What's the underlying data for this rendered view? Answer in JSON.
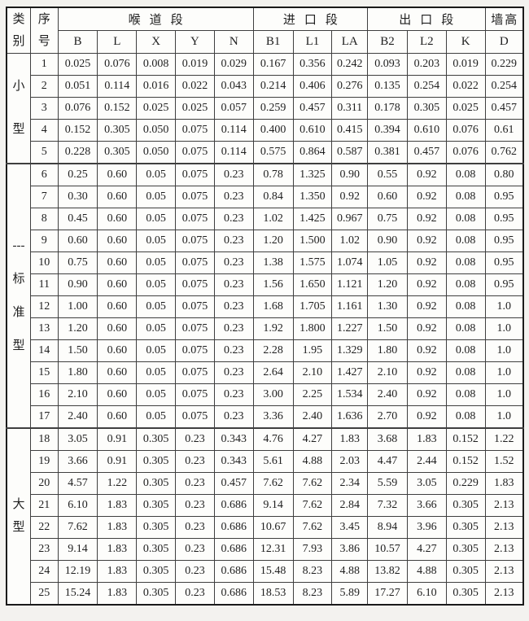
{
  "colors": {
    "page_background": "#f3f2ef",
    "cell_background": "#fdfdfb",
    "border_inner": "#3f3f3f",
    "border_outer": "#1a1a1a",
    "text": "#1f1f1f"
  },
  "table": {
    "header": {
      "category": {
        "chars": [
          "类",
          "别"
        ]
      },
      "serial": {
        "chars": [
          "序",
          "号"
        ]
      },
      "groups": [
        {
          "label": "喉道段",
          "cols": [
            "B",
            "L",
            "X",
            "Y",
            "N"
          ]
        },
        {
          "label": "进口段",
          "cols": [
            "B1",
            "L1",
            "LA"
          ]
        },
        {
          "label": "出口段",
          "cols": [
            "B2",
            "L2",
            "K"
          ]
        },
        {
          "label": "墙高",
          "cols": [
            "D"
          ]
        }
      ]
    },
    "row_groups": [
      {
        "category_chars": [
          "小",
          "型"
        ],
        "rows": [
          {
            "no": "1",
            "values": [
              "0.025",
              "0.076",
              "0.008",
              "0.019",
              "0.029",
              "0.167",
              "0.356",
              "0.242",
              "0.093",
              "0.203",
              "0.019",
              "0.229"
            ]
          },
          {
            "no": "2",
            "values": [
              "0.051",
              "0.114",
              "0.016",
              "0.022",
              "0.043",
              "0.214",
              "0.406",
              "0.276",
              "0.135",
              "0.254",
              "0.022",
              "0.254"
            ]
          },
          {
            "no": "3",
            "values": [
              "0.076",
              "0.152",
              "0.025",
              "0.025",
              "0.057",
              "0.259",
              "0.457",
              "0.311",
              "0.178",
              "0.305",
              "0.025",
              "0.457"
            ]
          },
          {
            "no": "4",
            "values": [
              "0.152",
              "0.305",
              "0.050",
              "0.075",
              "0.114",
              "0.400",
              "0.610",
              "0.415",
              "0.394",
              "0.610",
              "0.076",
              "0.61"
            ]
          },
          {
            "no": "5",
            "values": [
              "0.228",
              "0.305",
              "0.050",
              "0.075",
              "0.114",
              "0.575",
              "0.864",
              "0.587",
              "0.381",
              "0.457",
              "0.076",
              "0.762"
            ]
          }
        ]
      },
      {
        "category_chars": [
          "---",
          "标",
          "准",
          "型"
        ],
        "rows": [
          {
            "no": "6",
            "values": [
              "0.25",
              "0.60",
              "0.05",
              "0.075",
              "0.23",
              "0.78",
              "1.325",
              "0.90",
              "0.55",
              "0.92",
              "0.08",
              "0.80"
            ]
          },
          {
            "no": "7",
            "values": [
              "0.30",
              "0.60",
              "0.05",
              "0.075",
              "0.23",
              "0.84",
              "1.350",
              "0.92",
              "0.60",
              "0.92",
              "0.08",
              "0.95"
            ]
          },
          {
            "no": "8",
            "values": [
              "0.45",
              "0.60",
              "0.05",
              "0.075",
              "0.23",
              "1.02",
              "1.425",
              "0.967",
              "0.75",
              "0.92",
              "0.08",
              "0.95"
            ]
          },
          {
            "no": "9",
            "values": [
              "0.60",
              "0.60",
              "0.05",
              "0.075",
              "0.23",
              "1.20",
              "1.500",
              "1.02",
              "0.90",
              "0.92",
              "0.08",
              "0.95"
            ]
          },
          {
            "no": "10",
            "values": [
              "0.75",
              "0.60",
              "0.05",
              "0.075",
              "0.23",
              "1.38",
              "1.575",
              "1.074",
              "1.05",
              "0.92",
              "0.08",
              "0.95"
            ]
          },
          {
            "no": "11",
            "values": [
              "0.90",
              "0.60",
              "0.05",
              "0.075",
              "0.23",
              "1.56",
              "1.650",
              "1.121",
              "1.20",
              "0.92",
              "0.08",
              "0.95"
            ]
          },
          {
            "no": "12",
            "values": [
              "1.00",
              "0.60",
              "0.05",
              "0.075",
              "0.23",
              "1.68",
              "1.705",
              "1.161",
              "1.30",
              "0.92",
              "0.08",
              "1.0"
            ]
          },
          {
            "no": "13",
            "values": [
              "1.20",
              "0.60",
              "0.05",
              "0.075",
              "0.23",
              "1.92",
              "1.800",
              "1.227",
              "1.50",
              "0.92",
              "0.08",
              "1.0"
            ]
          },
          {
            "no": "14",
            "values": [
              "1.50",
              "0.60",
              "0.05",
              "0.075",
              "0.23",
              "2.28",
              "1.95",
              "1.329",
              "1.80",
              "0.92",
              "0.08",
              "1.0"
            ]
          },
          {
            "no": "15",
            "values": [
              "1.80",
              "0.60",
              "0.05",
              "0.075",
              "0.23",
              "2.64",
              "2.10",
              "1.427",
              "2.10",
              "0.92",
              "0.08",
              "1.0"
            ]
          },
          {
            "no": "16",
            "values": [
              "2.10",
              "0.60",
              "0.05",
              "0.075",
              "0.23",
              "3.00",
              "2.25",
              "1.534",
              "2.40",
              "0.92",
              "0.08",
              "1.0"
            ]
          },
          {
            "no": "17",
            "values": [
              "2.40",
              "0.60",
              "0.05",
              "0.075",
              "0.23",
              "3.36",
              "2.40",
              "1.636",
              "2.70",
              "0.92",
              "0.08",
              "1.0"
            ]
          }
        ]
      },
      {
        "category_chars": [
          "大",
          "型"
        ],
        "rows": [
          {
            "no": "18",
            "values": [
              "3.05",
              "0.91",
              "0.305",
              "0.23",
              "0.343",
              "4.76",
              "4.27",
              "1.83",
              "3.68",
              "1.83",
              "0.152",
              "1.22"
            ]
          },
          {
            "no": "19",
            "values": [
              "3.66",
              "0.91",
              "0.305",
              "0.23",
              "0.343",
              "5.61",
              "4.88",
              "2.03",
              "4.47",
              "2.44",
              "0.152",
              "1.52"
            ]
          },
          {
            "no": "20",
            "values": [
              "4.57",
              "1.22",
              "0.305",
              "0.23",
              "0.457",
              "7.62",
              "7.62",
              "2.34",
              "5.59",
              "3.05",
              "0.229",
              "1.83"
            ]
          },
          {
            "no": "21",
            "values": [
              "6.10",
              "1.83",
              "0.305",
              "0.23",
              "0.686",
              "9.14",
              "7.62",
              "2.84",
              "7.32",
              "3.66",
              "0.305",
              "2.13"
            ]
          },
          {
            "no": "22",
            "values": [
              "7.62",
              "1.83",
              "0.305",
              "0.23",
              "0.686",
              "10.67",
              "7.62",
              "3.45",
              "8.94",
              "3.96",
              "0.305",
              "2.13"
            ]
          },
          {
            "no": "23",
            "values": [
              "9.14",
              "1.83",
              "0.305",
              "0.23",
              "0.686",
              "12.31",
              "7.93",
              "3.86",
              "10.57",
              "4.27",
              "0.305",
              "2.13"
            ]
          },
          {
            "no": "24",
            "values": [
              "12.19",
              "1.83",
              "0.305",
              "0.23",
              "0.686",
              "15.48",
              "8.23",
              "4.88",
              "13.82",
              "4.88",
              "0.305",
              "2.13"
            ]
          },
          {
            "no": "25",
            "values": [
              "15.24",
              "1.83",
              "0.305",
              "0.23",
              "0.686",
              "18.53",
              "8.23",
              "5.89",
              "17.27",
              "6.10",
              "0.305",
              "2.13"
            ]
          }
        ]
      }
    ]
  }
}
